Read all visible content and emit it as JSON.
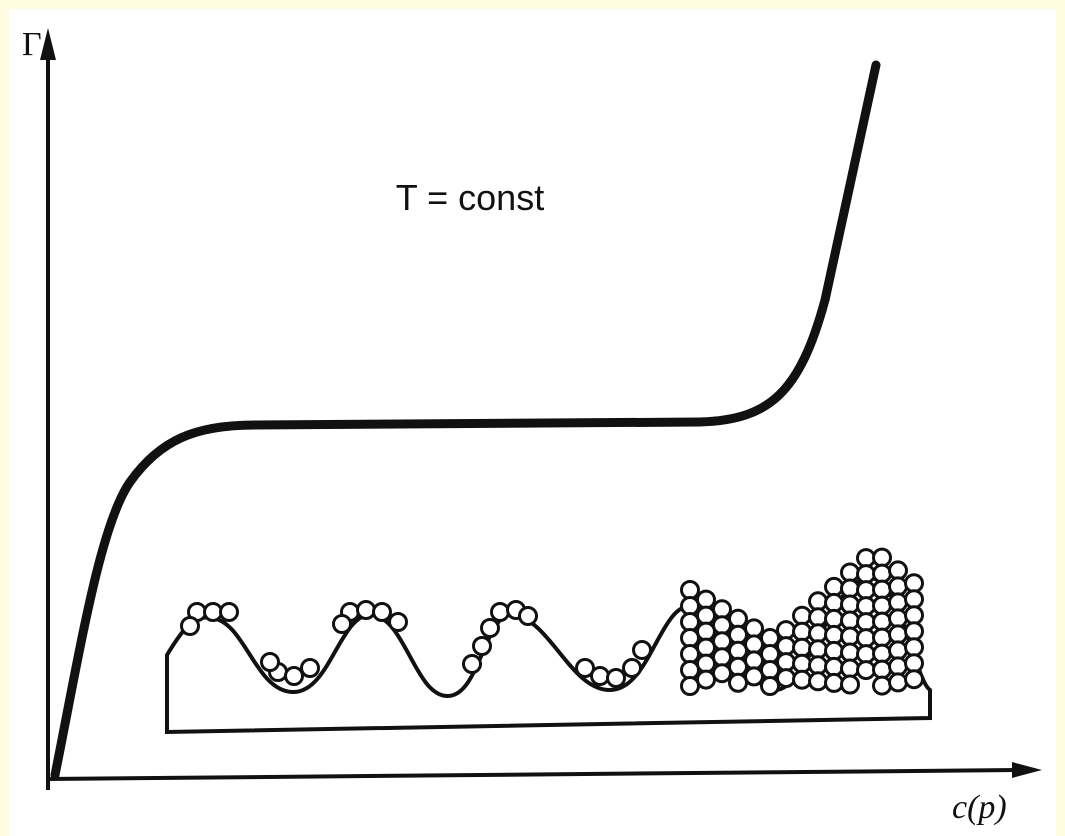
{
  "axes": {
    "y_label": "Γ",
    "x_label": "c(p)"
  },
  "annotation": "T = const"
}
